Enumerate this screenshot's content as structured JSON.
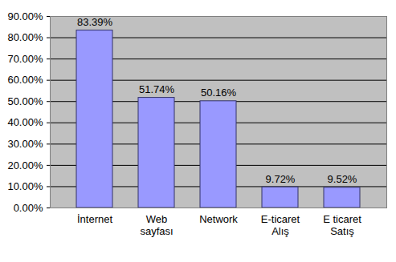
{
  "chart_data": {
    "type": "bar",
    "categories": [
      "İnternet",
      "Web\nsayfası",
      "Network",
      "E-ticaret\nAlış",
      "E ticaret\nSatış"
    ],
    "values": [
      83.39,
      51.74,
      50.16,
      9.72,
      9.52
    ],
    "value_labels": [
      "83.39%",
      "51.74%",
      "50.16%",
      "9.72%",
      "9.52%"
    ],
    "color": "#9999ff",
    "ylim": [
      0,
      90
    ],
    "yticks": [
      {
        "value": 0,
        "label": "0.00%"
      },
      {
        "value": 10,
        "label": "10.00%"
      },
      {
        "value": 20,
        "label": "20.00%"
      },
      {
        "value": 30,
        "label": "30.00%"
      },
      {
        "value": 40,
        "label": "40.00%"
      },
      {
        "value": 50,
        "label": "50.00%"
      },
      {
        "value": 60,
        "label": "60.00%"
      },
      {
        "value": 70,
        "label": "70.00%"
      },
      {
        "value": 80,
        "label": "80.00%"
      },
      {
        "value": 90,
        "label": "90.00%"
      }
    ],
    "grid": true,
    "data_labels": true
  }
}
